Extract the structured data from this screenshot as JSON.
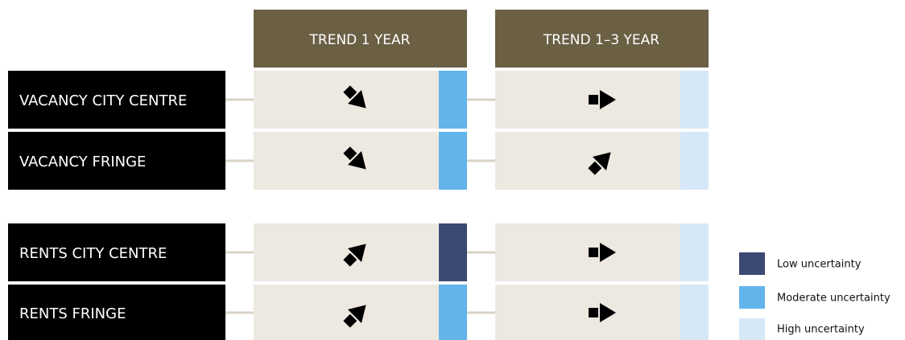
{
  "header": {
    "columns": [
      "TREND 1 YEAR",
      "TREND 1–3 YEAR"
    ]
  },
  "rows": [
    {
      "label": "VACANCY CITY CENTRE"
    },
    {
      "label": "VACANCY FRINGE"
    },
    {
      "label": "RENTS CITY CENTRE"
    },
    {
      "label": "RENTS FRINGE"
    }
  ],
  "legend": [
    "Low uncertainty",
    "Moderate uncertainty",
    "High uncertainty"
  ]
}
